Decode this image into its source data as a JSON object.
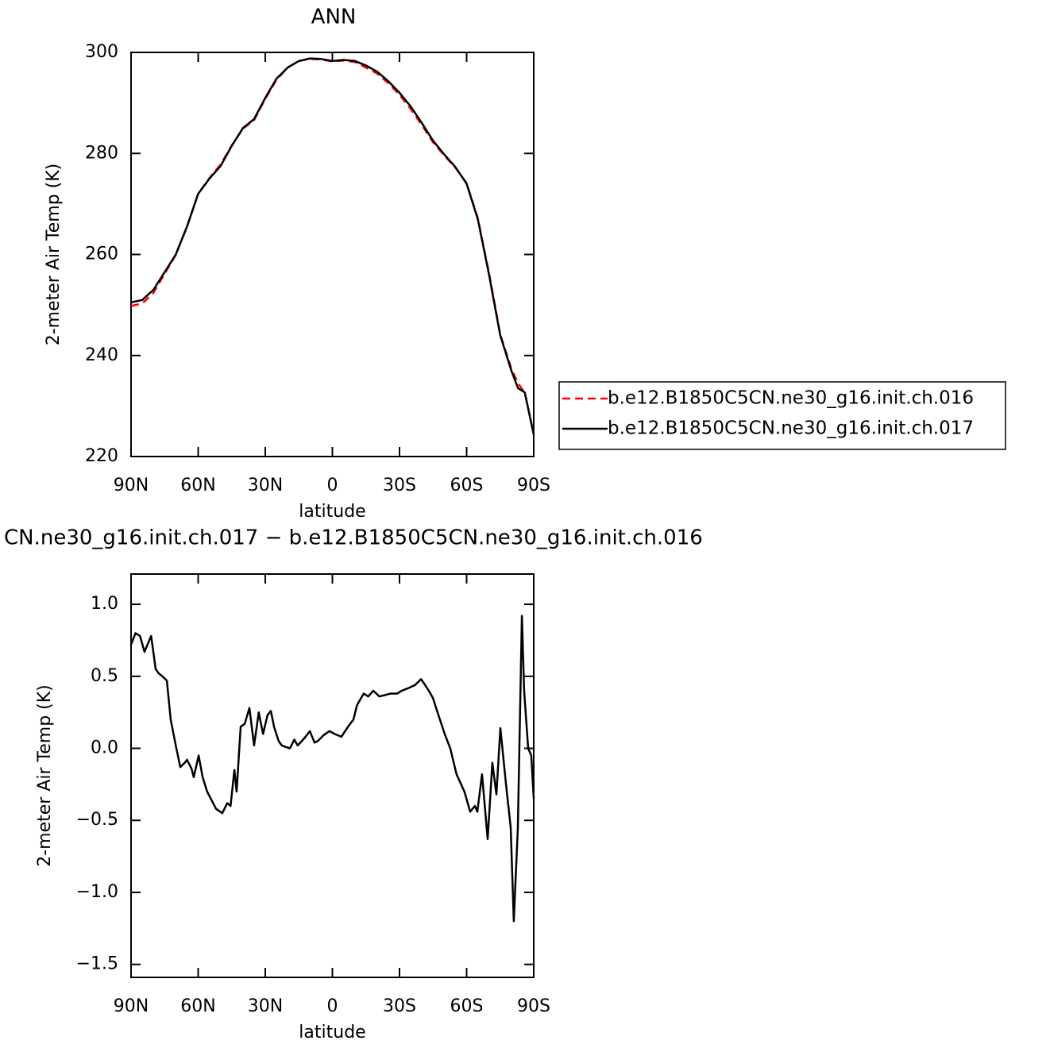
{
  "chart_data": [
    {
      "type": "line",
      "title": "ANN",
      "x_label": "latitude",
      "y_label": "2-meter Air Temp (K)",
      "x": [
        90,
        85,
        80,
        75,
        70,
        65,
        60,
        55,
        50,
        45,
        40,
        35,
        30,
        25,
        20,
        15,
        10,
        5,
        0,
        -5,
        -10,
        -15,
        -20,
        -25,
        -30,
        -35,
        -40,
        -45,
        -50,
        -55,
        -60,
        -65,
        -70,
        -75,
        -80,
        -83,
        -86,
        -90
      ],
      "xlim": [
        90,
        -90
      ],
      "xticks": [
        {
          "value": 90,
          "label": "90N"
        },
        {
          "value": 60,
          "label": "60N"
        },
        {
          "value": 30,
          "label": "30N"
        },
        0,
        {
          "value": -30,
          "label": "30S"
        },
        {
          "value": -60,
          "label": "60S"
        },
        {
          "value": -90,
          "label": "90S"
        }
      ],
      "ylim": [
        220,
        300
      ],
      "yticks": [
        220,
        240,
        260,
        280,
        300
      ],
      "legend": "right",
      "series": [
        {
          "name": "b.e12.B1850C5CN.ne30_g16.init.ch.016",
          "color": "#ff0000",
          "line_style": "dashed",
          "values": [
            249.8,
            250.3,
            252.4,
            256.2,
            259.9,
            265.5,
            272,
            275.1,
            277.8,
            281.6,
            284.9,
            286.6,
            290.8,
            294.6,
            297,
            298.3,
            298.7,
            298.6,
            298.2,
            298.4,
            298.1,
            297,
            295.8,
            293.9,
            291.6,
            288.8,
            285.6,
            282.2,
            279.6,
            277.2,
            274.1,
            267.2,
            256.3,
            244.2,
            237.4,
            234.5,
            232.6,
            224.5
          ]
        },
        {
          "name": "b.e12.B1850C5CN.ne30_g16.init.ch.017",
          "color": "#000000",
          "line_style": "solid",
          "values": [
            250.5,
            251,
            253,
            256.5,
            260,
            265.5,
            272,
            275,
            277.5,
            281.5,
            285,
            286.8,
            291,
            294.8,
            297,
            298.3,
            298.8,
            298.7,
            298.3,
            298.5,
            298.3,
            297.4,
            296.2,
            294.3,
            292,
            289.3,
            286,
            282.5,
            279.8,
            277.3,
            274,
            267,
            256,
            244,
            237,
            233.5,
            232.7,
            224.3
          ]
        }
      ]
    },
    {
      "type": "line",
      "title": "CN.ne30_g16.init.ch.017 − b.e12.B1850C5CN.ne30_g16.init.ch.016",
      "x_label": "latitude",
      "y_label": "2-meter Air Temp (K)",
      "x": [
        90,
        88,
        86,
        84,
        81,
        79,
        77.6,
        76,
        74,
        72.3,
        70,
        68,
        66,
        65,
        63,
        62,
        59.8,
        58,
        56,
        54,
        52,
        49.2,
        47,
        45.5,
        43.8,
        42.8,
        41,
        39.2,
        37.1,
        35,
        32.9,
        31,
        29,
        27.5,
        26.1,
        24,
        22.6,
        21,
        19,
        17,
        15.5,
        13.7,
        12,
        10.1,
        8,
        6.6,
        4,
        1.3,
        -1,
        -4,
        -7,
        -9.4,
        -11,
        -14,
        -16,
        -18.3,
        -21,
        -23.6,
        -26,
        -28.9,
        -31,
        -34.3,
        -37,
        -39.6,
        -41,
        -43.1,
        -44.9,
        -47,
        -50.2,
        -52.7,
        -55.5,
        -59,
        -61.6,
        -63.7,
        -64.8,
        -66.9,
        -69.4,
        -71.5,
        -73.3,
        -75.1,
        -77.6,
        -79.7,
        -81.1,
        -82.9,
        -84.7,
        -85.7,
        -87.5,
        -88.9,
        -90
      ],
      "xlim": [
        90,
        -90
      ],
      "xticks": [
        {
          "value": 90,
          "label": "90N"
        },
        {
          "value": 60,
          "label": "60N"
        },
        {
          "value": 30,
          "label": "30N"
        },
        0,
        {
          "value": -30,
          "label": "30S"
        },
        {
          "value": -60,
          "label": "60S"
        },
        {
          "value": -90,
          "label": "90S"
        }
      ],
      "ylim": [
        -1.59,
        1.21
      ],
      "yticks": [
        {
          "value": -1.5,
          "label": "−1.5"
        },
        {
          "value": -1,
          "label": "−1.0"
        },
        {
          "value": -0.5,
          "label": "−0.5"
        },
        {
          "value": 0,
          "label": "0.0"
        },
        0.5,
        {
          "value": 1,
          "label": "1.0"
        }
      ],
      "series": [
        {
          "color": "#000000",
          "line_style": "solid",
          "values": [
            0.72,
            0.8,
            0.78,
            0.67,
            0.78,
            0.55,
            0.52,
            0.5,
            0.47,
            0.2,
            0.02,
            -0.13,
            -0.1,
            -0.08,
            -0.14,
            -0.2,
            -0.05,
            -0.2,
            -0.3,
            -0.36,
            -0.42,
            -0.45,
            -0.38,
            -0.4,
            -0.15,
            -0.3,
            0.15,
            0.17,
            0.28,
            0.02,
            0.25,
            0.1,
            0.23,
            0.26,
            0.15,
            0.05,
            0.02,
            0.01,
            0.0,
            0.06,
            0.02,
            0.05,
            0.08,
            0.12,
            0.04,
            0.05,
            0.09,
            0.12,
            0.1,
            0.08,
            0.15,
            0.2,
            0.3,
            0.38,
            0.36,
            0.4,
            0.36,
            0.37,
            0.38,
            0.38,
            0.4,
            0.42,
            0.44,
            0.48,
            0.45,
            0.4,
            0.35,
            0.25,
            0.1,
            0.0,
            -0.18,
            -0.3,
            -0.44,
            -0.4,
            -0.44,
            -0.18,
            -0.63,
            -0.1,
            -0.32,
            0.14,
            -0.25,
            -0.55,
            -1.2,
            -0.55,
            0.92,
            0.4,
            0.0,
            -0.05,
            -0.35
          ]
        }
      ]
    }
  ]
}
